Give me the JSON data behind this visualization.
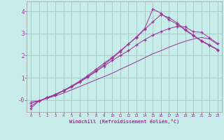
{
  "background_color": "#c8ecea",
  "grid_color": "#a0c8c4",
  "line_color": "#993399",
  "xlabel": "Windchill (Refroidissement éolien,°C)",
  "xlim": [
    -0.5,
    23.5
  ],
  "ylim": [
    -0.55,
    4.45
  ],
  "yticks": [
    0,
    1,
    2,
    3,
    4
  ],
  "ytick_labels": [
    "-0",
    "1",
    "2",
    "3",
    "4"
  ],
  "xticks": [
    0,
    1,
    2,
    3,
    4,
    5,
    6,
    7,
    8,
    9,
    10,
    11,
    12,
    13,
    14,
    15,
    16,
    17,
    18,
    19,
    20,
    21,
    22,
    23
  ],
  "lines": [
    {
      "x": [
        0,
        1,
        2,
        3,
        4,
        5,
        6,
        7,
        8,
        9,
        10,
        11,
        12,
        13,
        14,
        15,
        16,
        17,
        18,
        19,
        20,
        21,
        22,
        23
      ],
      "y": [
        -0.08,
        -0.05,
        0.07,
        0.18,
        0.3,
        0.45,
        0.6,
        0.75,
        0.9,
        1.05,
        1.2,
        1.38,
        1.55,
        1.72,
        1.9,
        2.08,
        2.22,
        2.38,
        2.52,
        2.65,
        2.75,
        2.82,
        2.75,
        2.5
      ],
      "has_markers": false
    },
    {
      "x": [
        0,
        1,
        2,
        3,
        4,
        5,
        6,
        7,
        8,
        9,
        10,
        11,
        12,
        13,
        14,
        15,
        16,
        17,
        18,
        19,
        20,
        21,
        22,
        23
      ],
      "y": [
        -0.28,
        -0.05,
        0.08,
        0.22,
        0.4,
        0.58,
        0.8,
        1.02,
        1.28,
        1.52,
        1.78,
        2.0,
        2.22,
        2.48,
        2.72,
        2.92,
        3.08,
        3.22,
        3.32,
        3.3,
        3.08,
        3.05,
        2.8,
        2.55
      ],
      "has_markers": true
    },
    {
      "x": [
        0,
        1,
        2,
        3,
        4,
        5,
        6,
        7,
        8,
        9,
        10,
        11,
        12,
        13,
        14,
        15,
        16,
        17,
        18,
        19,
        20,
        21,
        22,
        23
      ],
      "y": [
        -0.15,
        -0.05,
        0.1,
        0.25,
        0.42,
        0.62,
        0.85,
        1.1,
        1.38,
        1.65,
        1.92,
        2.22,
        2.52,
        2.82,
        3.18,
        3.52,
        3.85,
        3.72,
        3.48,
        3.18,
        2.92,
        2.68,
        2.48,
        2.28
      ],
      "has_markers": true
    },
    {
      "x": [
        0,
        1,
        2,
        3,
        4,
        5,
        6,
        7,
        8,
        9,
        10,
        11,
        12,
        13,
        14,
        15,
        16,
        17,
        18,
        19,
        20,
        21,
        22,
        23
      ],
      "y": [
        -0.38,
        -0.05,
        0.1,
        0.25,
        0.42,
        0.62,
        0.82,
        1.05,
        1.32,
        1.58,
        1.88,
        2.18,
        2.52,
        2.85,
        3.22,
        4.1,
        3.92,
        3.62,
        3.42,
        3.15,
        2.9,
        2.65,
        2.45,
        2.25
      ],
      "has_markers": true
    }
  ]
}
